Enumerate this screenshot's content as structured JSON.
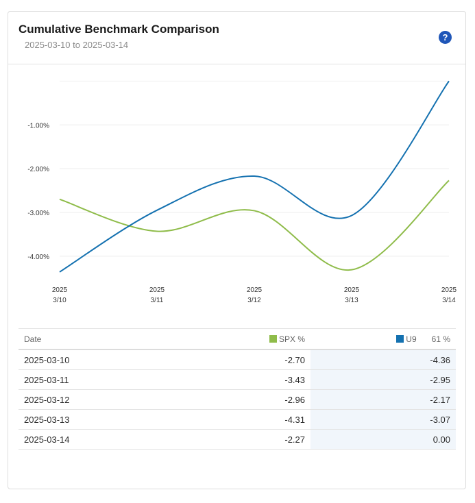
{
  "header": {
    "title": "Cumulative Benchmark Comparison",
    "subtitle": "2025-03-10 to 2025-03-14",
    "help_label": "?"
  },
  "colors": {
    "spx": "#8fbc4a",
    "u9": "#1471b0"
  },
  "table": {
    "col_date": "Date",
    "col_spx": "SPX %",
    "col_u9": "U9",
    "col_u9_pct": "61 %",
    "rows": [
      {
        "date": "2025-03-10",
        "spx": "-2.70",
        "u9": "-4.36"
      },
      {
        "date": "2025-03-11",
        "spx": "-3.43",
        "u9": "-2.95"
      },
      {
        "date": "2025-03-12",
        "spx": "-2.96",
        "u9": "-2.17"
      },
      {
        "date": "2025-03-13",
        "spx": "-4.31",
        "u9": "-3.07"
      },
      {
        "date": "2025-03-14",
        "spx": "-2.27",
        "u9": "0.00"
      }
    ]
  },
  "chart_data": {
    "type": "line",
    "x": [
      "2025-03-10",
      "2025-03-11",
      "2025-03-12",
      "2025-03-13",
      "2025-03-14"
    ],
    "x_tick_labels": [
      {
        "year": "2025",
        "day": "3/10"
      },
      {
        "year": "2025",
        "day": "3/11"
      },
      {
        "year": "2025",
        "day": "3/12"
      },
      {
        "year": "2025",
        "day": "3/13"
      },
      {
        "year": "2025",
        "day": "3/14"
      }
    ],
    "y_ticks": [
      -4,
      -3,
      -2,
      -1
    ],
    "y_tick_labels": [
      "-4.00%",
      "-3.00%",
      "-2.00%",
      "-1.00%"
    ],
    "ylim": [
      -4.55,
      0.1
    ],
    "grid": true,
    "series": [
      {
        "name": "SPX %",
        "color": "#8fbc4a",
        "values": [
          -2.7,
          -3.43,
          -2.96,
          -4.31,
          -2.27
        ]
      },
      {
        "name": "U9",
        "color": "#1471b0",
        "values": [
          -4.36,
          -2.95,
          -2.17,
          -3.07,
          0.0
        ]
      }
    ]
  }
}
